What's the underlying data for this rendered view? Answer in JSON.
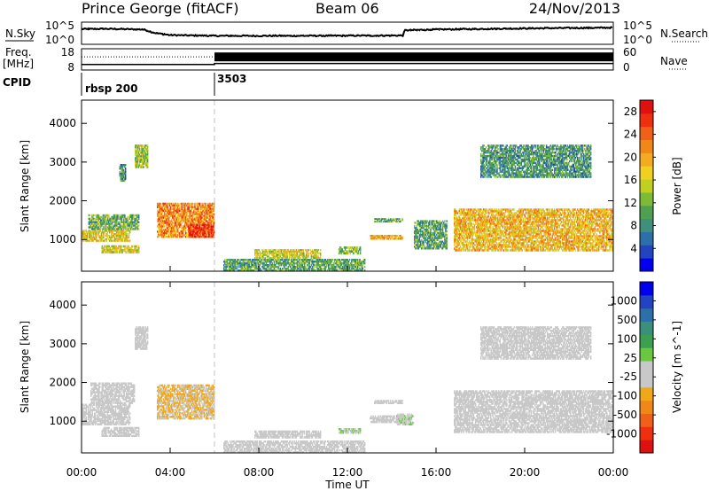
{
  "header": {
    "station": "Prince George (fitACF)",
    "beam": "Beam 06",
    "date": "24/Nov/2013"
  },
  "side_labels": {
    "nsky": "N.Sky",
    "freq_top": "Freq.",
    "freq_unit": "[MHz]",
    "cpid": "CPID",
    "nsearch": "N.Search",
    "nave": "Nave"
  },
  "cpid_segments": [
    {
      "start_hour": 0.0,
      "label": "rbsp 200"
    },
    {
      "start_hour": 6.0,
      "label": "3503"
    }
  ],
  "colors": {
    "axis": "#000000",
    "ground_scatter": "#c8c8c8",
    "dashed_marker": "#c0c0c0"
  },
  "chart_data": [
    {
      "type": "line",
      "name": "noise-panel",
      "left_axis": {
        "label": "N.Sky",
        "tick_labels": [
          "10^5",
          "10^0"
        ],
        "scale": "log",
        "range": [
          1,
          100000
        ]
      },
      "right_axis": {
        "label": "N.Search",
        "tick_labels": [
          "10^5",
          "10^0"
        ],
        "scale": "log",
        "range": [
          1,
          100000
        ]
      },
      "x_range_hours": [
        0,
        24
      ],
      "nsky_log10": {
        "hours": [
          0,
          1,
          2,
          2.8,
          3.3,
          4,
          6,
          10,
          14.5,
          14.6,
          16,
          20,
          24
        ],
        "values": [
          3.6,
          3.7,
          3.6,
          3.5,
          2.6,
          2.0,
          1.8,
          1.8,
          1.9,
          3.3,
          3.5,
          3.8,
          4.0
        ]
      }
    },
    {
      "type": "line",
      "name": "freq-nave-panel",
      "left_axis": {
        "label": "Freq. [MHz]",
        "tick_labels": [
          "18",
          "8"
        ],
        "range": [
          8,
          18
        ]
      },
      "right_axis": {
        "label": "Nave",
        "tick_labels": [
          "60",
          "0"
        ],
        "range": [
          0,
          60
        ]
      },
      "freq_mhz": {
        "hours": [
          0,
          6,
          6,
          24
        ],
        "values": [
          10.4,
          10.4,
          10.9,
          10.9
        ]
      },
      "nave": {
        "hours": [
          0,
          6,
          6,
          24
        ],
        "values": [
          38,
          38,
          24,
          24
        ]
      }
    },
    {
      "type": "heatmap",
      "name": "power-panel",
      "ylabel": "Slant Range [km]",
      "ylim": [
        180,
        4600
      ],
      "y_tick_labels": [
        "1000",
        "2000",
        "3000",
        "4000"
      ],
      "colorbar": {
        "label": "Power [dB]",
        "tick_labels": [
          "4",
          "8",
          "12",
          "16",
          "20",
          "24",
          "28"
        ],
        "range": [
          0,
          30
        ],
        "colors": [
          "#0000ee",
          "#2244c0",
          "#2d6fa8",
          "#3f8f7a",
          "#4fa050",
          "#7cbb36",
          "#c0d020",
          "#f0d020",
          "#f3ac20",
          "#f08818",
          "#f06018",
          "#ee3010",
          "#e01010"
        ]
      },
      "regions": [
        {
          "t0": 0.0,
          "t1": 2.2,
          "r0": 950,
          "r1": 1250,
          "level": 17
        },
        {
          "t0": 0.3,
          "t1": 2.6,
          "r0": 1250,
          "r1": 1650,
          "level": 11
        },
        {
          "t0": 0.9,
          "t1": 2.6,
          "r0": 650,
          "r1": 850,
          "level": 16
        },
        {
          "t0": 2.4,
          "t1": 3.0,
          "r0": 2850,
          "r1": 3450,
          "level": 14
        },
        {
          "t0": 1.7,
          "t1": 2.0,
          "r0": 2500,
          "r1": 2950,
          "level": 9
        },
        {
          "t0": 3.4,
          "t1": 6.0,
          "r0": 1050,
          "r1": 1950,
          "level": 22
        },
        {
          "t0": 4.8,
          "t1": 6.0,
          "r0": 1050,
          "r1": 1400,
          "level": 27
        },
        {
          "t0": 7.8,
          "t1": 10.8,
          "r0": 500,
          "r1": 750,
          "level": 16
        },
        {
          "t0": 6.4,
          "t1": 12.8,
          "r0": 180,
          "r1": 500,
          "level": 10
        },
        {
          "t0": 11.6,
          "t1": 12.6,
          "r0": 620,
          "r1": 820,
          "level": 12
        },
        {
          "t0": 13.0,
          "t1": 14.5,
          "r0": 1000,
          "r1": 1120,
          "level": 20
        },
        {
          "t0": 13.2,
          "t1": 14.5,
          "r0": 1450,
          "r1": 1550,
          "level": 10
        },
        {
          "t0": 15.0,
          "t1": 16.5,
          "r0": 750,
          "r1": 1500,
          "level": 10
        },
        {
          "t0": 16.8,
          "t1": 24.0,
          "r0": 700,
          "r1": 1800,
          "level": 19
        },
        {
          "t0": 18.0,
          "t1": 23.0,
          "r0": 2600,
          "r1": 3450,
          "level": 9
        }
      ]
    },
    {
      "type": "heatmap",
      "name": "velocity-panel",
      "ylabel": "Slant Range [km]",
      "ylim": [
        180,
        4600
      ],
      "y_tick_labels": [
        "1000",
        "2000",
        "3000",
        "4000"
      ],
      "xlabel": "Time UT",
      "x_tick_labels": [
        "00:00",
        "04:00",
        "08:00",
        "12:00",
        "16:00",
        "20:00",
        "00:00"
      ],
      "x_range_hours": [
        0,
        24
      ],
      "colorbar": {
        "label": "Velocity [m s^-1]",
        "tick_labels": [
          "1000",
          "500",
          "100",
          "25",
          "-25",
          "-100",
          "-500",
          "-1000"
        ],
        "range": [
          -1250,
          1250
        ],
        "colors": [
          "#e01010",
          "#ee3010",
          "#f06018",
          "#f08818",
          "#f0a818",
          "#c8c8c8",
          "#c8c8c8",
          "#6ac840",
          "#3da050",
          "#3c8f7a",
          "#2d6fa8",
          "#2244c0",
          "#0000ee"
        ]
      },
      "regions": [
        {
          "t0": 0.0,
          "t1": 2.2,
          "r0": 900,
          "r1": 1450,
          "level": "gs"
        },
        {
          "t0": 0.4,
          "t1": 2.4,
          "r0": 1450,
          "r1": 2000,
          "level": "gs"
        },
        {
          "t0": 0.9,
          "t1": 2.6,
          "r0": 600,
          "r1": 850,
          "level": "gs"
        },
        {
          "t0": 2.4,
          "t1": 3.0,
          "r0": 2850,
          "r1": 3450,
          "level": -200
        },
        {
          "t0": 3.4,
          "t1": 6.0,
          "r0": 1050,
          "r1": 1950,
          "level": -300
        },
        {
          "t0": 7.8,
          "t1": 10.8,
          "r0": 560,
          "r1": 760,
          "level": "gs"
        },
        {
          "t0": 6.4,
          "t1": 12.8,
          "r0": 180,
          "r1": 500,
          "level": 60
        },
        {
          "t0": 11.6,
          "t1": 12.6,
          "r0": 680,
          "r1": 820,
          "level": 90
        },
        {
          "t0": 13.0,
          "t1": 14.5,
          "r0": 960,
          "r1": 1150,
          "level": "gs"
        },
        {
          "t0": 14.2,
          "t1": 15.0,
          "r0": 900,
          "r1": 1200,
          "level": 80
        },
        {
          "t0": 13.2,
          "t1": 14.5,
          "r0": 1450,
          "r1": 1550,
          "level": "gs"
        },
        {
          "t0": 16.8,
          "t1": 24.0,
          "r0": 700,
          "r1": 1800,
          "level": "gs"
        },
        {
          "t0": 18.0,
          "t1": 23.0,
          "r0": 2600,
          "r1": 3450,
          "level": -150
        }
      ]
    }
  ]
}
